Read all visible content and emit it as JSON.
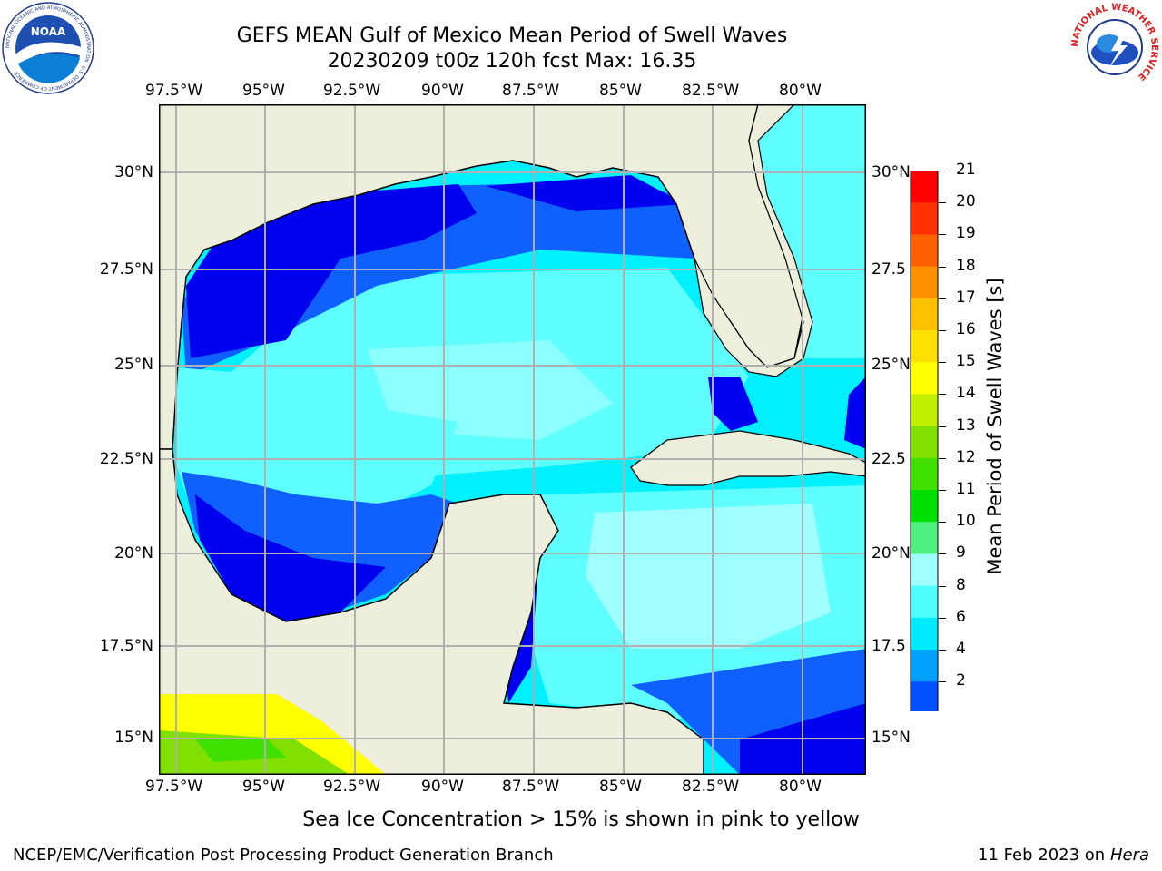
{
  "header": {
    "title_line1": "GEFS MEAN Gulf of Mexico Mean Period of Swell Waves",
    "title_line2": "20230209 t00z 120h fcst   Max: 16.35"
  },
  "logos": {
    "noaa_text": "NOAA",
    "noaa_ring": "NATIONAL OCEANIC AND ATMOSPHERIC ADMINISTRATION · U.S. DEPARTMENT OF COMMERCE",
    "nws_ring": "NATIONAL WEATHER SERVICE"
  },
  "axes": {
    "lon_labels": [
      "97.5°W",
      "95°W",
      "92.5°W",
      "90°W",
      "87.5°W",
      "85°W",
      "82.5°W",
      "80°W"
    ],
    "lat_labels_left": [
      "30°N",
      "27.5°N",
      "25°N",
      "22.5°N",
      "20°N",
      "17.5°N",
      "15°N"
    ],
    "lat_labels_right": [
      "30°N",
      "27.5",
      "25°N",
      "22.5",
      "20°N",
      "17.5",
      "15°N"
    ]
  },
  "colorbar": {
    "title": "Mean Period of Swell Waves [s]",
    "tick_labels": [
      "2",
      "4",
      "6",
      "8",
      "9",
      "10",
      "11",
      "12",
      "13",
      "14",
      "15",
      "16",
      "17",
      "18",
      "19",
      "20",
      "21"
    ],
    "colors": [
      "#0000ff",
      "#0050ff",
      "#00a0ff",
      "#00eaff",
      "#4dffff",
      "#a0ffff",
      "#50f080",
      "#00e000",
      "#40e000",
      "#80e000",
      "#c0f000",
      "#ffff00",
      "#ffe000",
      "#ffc000",
      "#ff9000",
      "#ff6000",
      "#ff3000",
      "#ff0000"
    ]
  },
  "map_colors": {
    "land": "#eeeedc",
    "ocean_deep": "#0000f0",
    "ocean_mid": "#1060ff",
    "ocean_cyan": "#00f0ff",
    "ocean_light": "#60ffff",
    "ocean_pale": "#a0ffff"
  },
  "footer": {
    "note": "Sea Ice Concentration > 15% is shown in pink to yellow",
    "credit": "NCEP/EMC/Verification Post Processing Product Generation Branch",
    "date": "11 Feb 2023 on",
    "machine": "Hera"
  }
}
